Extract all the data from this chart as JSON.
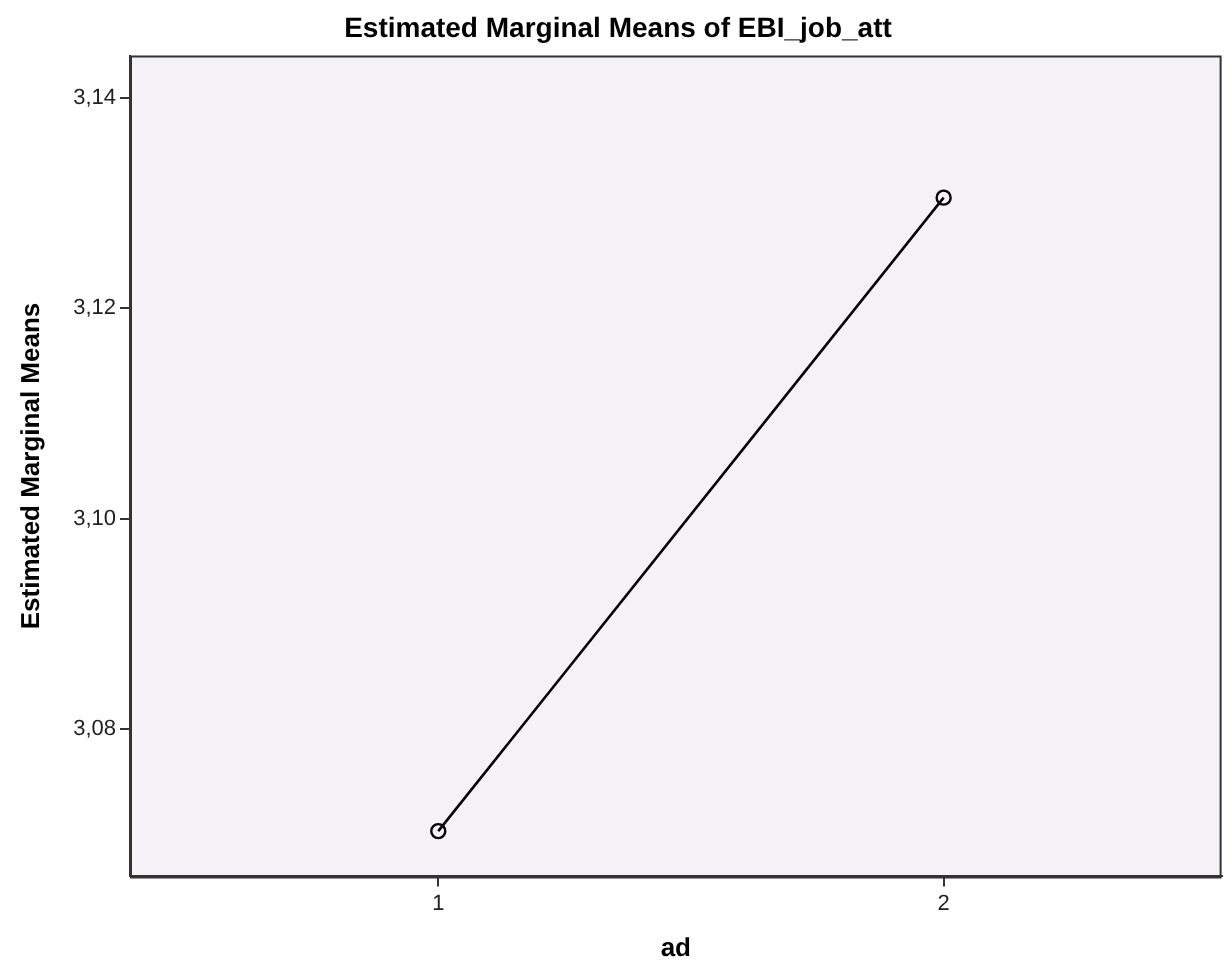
{
  "chart_data": {
    "type": "line",
    "title": "Estimated Marginal Means of EBI_job_att",
    "xlabel": "ad",
    "ylabel": "Estimated Marginal Means",
    "x": [
      1,
      2
    ],
    "series": [
      {
        "color": "#000000",
        "values": [
          3.0703,
          3.1305
        ]
      }
    ],
    "xlim": [
      0.39,
      2.55
    ],
    "xticks": [
      1,
      2
    ],
    "ylim": [
      3.066,
      3.144
    ],
    "yticks": [
      {
        "value": 3.08,
        "label": "3,08"
      },
      {
        "value": 3.1,
        "label": "3,10"
      },
      {
        "value": 3.12,
        "label": "3,12"
      },
      {
        "value": 3.14,
        "label": "3,14"
      }
    ],
    "marker": "circle",
    "line_style": "solid",
    "grid": false,
    "legend": false
  }
}
